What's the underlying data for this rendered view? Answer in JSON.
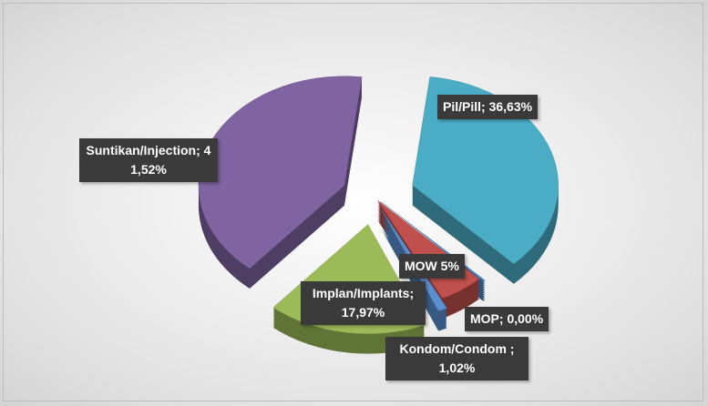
{
  "chart_data": {
    "type": "pie",
    "labels": [
      "Pil/Pill; 36,63%",
      "MOP; 0,00%",
      "MOW 5%",
      "Kondom/Condom ; 1,02%",
      "Implan/Implants; 17,97%",
      "Suntikan/Injection; 41,52%"
    ],
    "values": [
      36.63,
      0.0,
      5,
      1.02,
      17.97,
      41.52
    ],
    "colors": [
      "#4bacc6",
      "#4f81bd",
      "#c0504d",
      "#5b8fd0",
      "#9bbb59",
      "#8064a2"
    ]
  }
}
